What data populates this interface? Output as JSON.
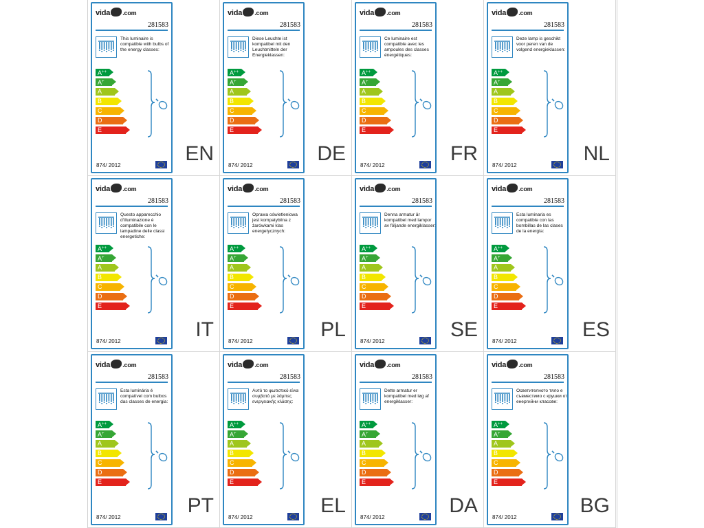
{
  "brand": {
    "name_prefix": "vida",
    "name_suffix": ".com"
  },
  "product_code": "281583",
  "regulation": "874/ 2012",
  "classes": [
    {
      "letter": "A",
      "sup": "++",
      "color": "#009a3e"
    },
    {
      "letter": "A",
      "sup": "+",
      "color": "#36a635"
    },
    {
      "letter": "A",
      "sup": "",
      "color": "#9fc61c"
    },
    {
      "letter": "B",
      "sup": "",
      "color": "#f2e600"
    },
    {
      "letter": "C",
      "sup": "",
      "color": "#f7b400"
    },
    {
      "letter": "D",
      "sup": "",
      "color": "#ea6e13"
    },
    {
      "letter": "E",
      "sup": "",
      "color": "#e3231c"
    }
  ],
  "accent_color": "#2e86c1",
  "icons": [
    "lamp-array-icon",
    "bulb-icon",
    "eu-flag-icon"
  ],
  "labels": [
    {
      "lang": "EN",
      "text": "This luminaire is compatible with bulbs of the energy classes:"
    },
    {
      "lang": "DE",
      "text": "Diese Leuchte ist kompatibel mit den Leuchtmitteln der Energieklassen:"
    },
    {
      "lang": "FR",
      "text": "Ce luminaire est compatible avec les ampoules des classes énergétiques:"
    },
    {
      "lang": "NL",
      "text": "Deze lamp is geschikt voor peren van de volgend energieklassen:"
    },
    {
      "lang": "IT",
      "text": "Questo apparecchio d'illuminazione è compatibile con le lampadine delle classi energetiche:"
    },
    {
      "lang": "PL",
      "text": "Oprawa oświetleniowa jest kompatybilna z żarówkami klas energetycznych:"
    },
    {
      "lang": "SE",
      "text": "Denna armatur är kompatibel med lampor av följande energiklasser:"
    },
    {
      "lang": "ES",
      "text": "Esta luminaria es compatible con las bombillas de las clases de la energía:"
    },
    {
      "lang": "PT",
      "text": "Esta luminária é compatível com bulbos das classes de energia:"
    },
    {
      "lang": "EL",
      "text": "Αυτό το φωτιστικό είναι συμβατό με λάμπες ενεργειακής κλάσης:"
    },
    {
      "lang": "DA",
      "text": "Dette armatur er kompatibel med løg af energiklasser:"
    },
    {
      "lang": "BG",
      "text": "Осветителното тяло е съвместимо с крушки от енергийни класове:"
    }
  ]
}
